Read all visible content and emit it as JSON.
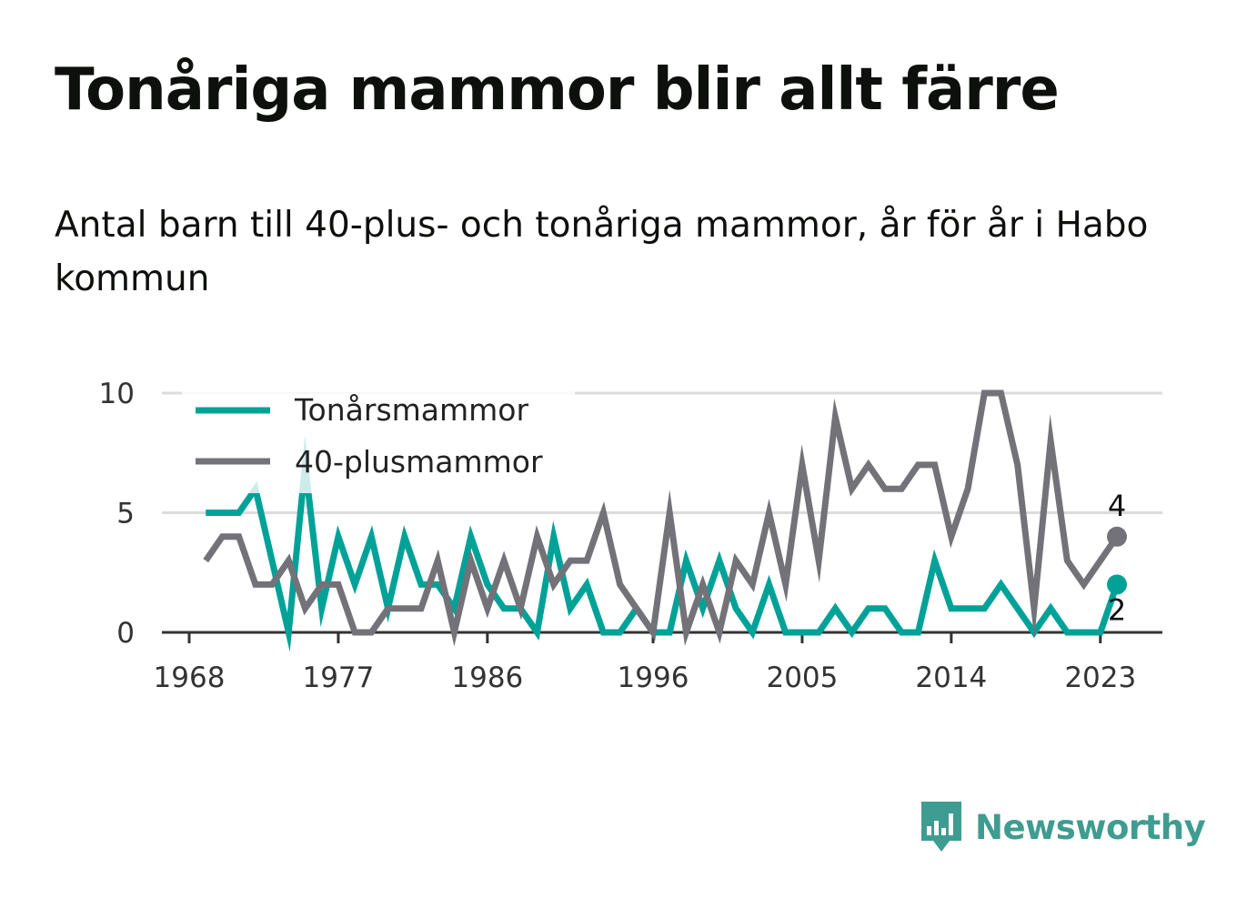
{
  "title": "Tonåriga mammor blir allt färre",
  "subtitle": "Antal barn till 40-plus- och tonåriga mammor, år för år i Habo kommun",
  "brand": {
    "name": "Newsworthy",
    "icon": "bar-chart-speech-bubble-icon",
    "color": "#3f9c90"
  },
  "chart_data": {
    "type": "line",
    "x": [
      1969,
      1970,
      1971,
      1972,
      1973,
      1974,
      1975,
      1976,
      1977,
      1978,
      1979,
      1980,
      1981,
      1982,
      1983,
      1984,
      1985,
      1986,
      1987,
      1988,
      1989,
      1990,
      1991,
      1992,
      1993,
      1994,
      1995,
      1996,
      1997,
      1998,
      1999,
      2000,
      2001,
      2002,
      2003,
      2004,
      2005,
      2006,
      2007,
      2008,
      2009,
      2010,
      2011,
      2012,
      2013,
      2014,
      2015,
      2016,
      2017,
      2018,
      2019,
      2020,
      2021,
      2022,
      2023,
      2024
    ],
    "x_ticks": [
      1968,
      1977,
      1986,
      1996,
      2005,
      2014,
      2023
    ],
    "y_ticks": [
      0,
      5,
      10
    ],
    "ylim": [
      0,
      10
    ],
    "grid": true,
    "legend_position": "top-left",
    "series": [
      {
        "name": "Tonårsmammor",
        "color": "#00a298",
        "values": [
          5,
          5,
          5,
          6,
          3,
          0,
          7,
          1,
          4,
          2,
          4,
          1,
          4,
          2,
          2,
          1,
          4,
          2,
          1,
          1,
          0,
          4,
          1,
          2,
          0,
          0,
          1,
          0,
          0,
          3,
          1,
          3,
          1,
          0,
          2,
          0,
          0,
          0,
          1,
          0,
          1,
          1,
          0,
          0,
          3,
          1,
          1,
          1,
          2,
          1,
          0,
          1,
          0,
          0,
          0,
          2
        ],
        "end_label": "2"
      },
      {
        "name": "40-plusmammor",
        "color": "#737278",
        "values": [
          3,
          4,
          4,
          2,
          2,
          3,
          1,
          2,
          2,
          0,
          0,
          1,
          1,
          1,
          3,
          0,
          3,
          1,
          3,
          1,
          4,
          2,
          3,
          3,
          5,
          2,
          1,
          0,
          5,
          0,
          2,
          0,
          3,
          2,
          5,
          2,
          7,
          3,
          9,
          6,
          7,
          6,
          6,
          7,
          7,
          4,
          6,
          10,
          10,
          7,
          1,
          8,
          3,
          2,
          3,
          4
        ],
        "end_label": "4"
      }
    ]
  }
}
